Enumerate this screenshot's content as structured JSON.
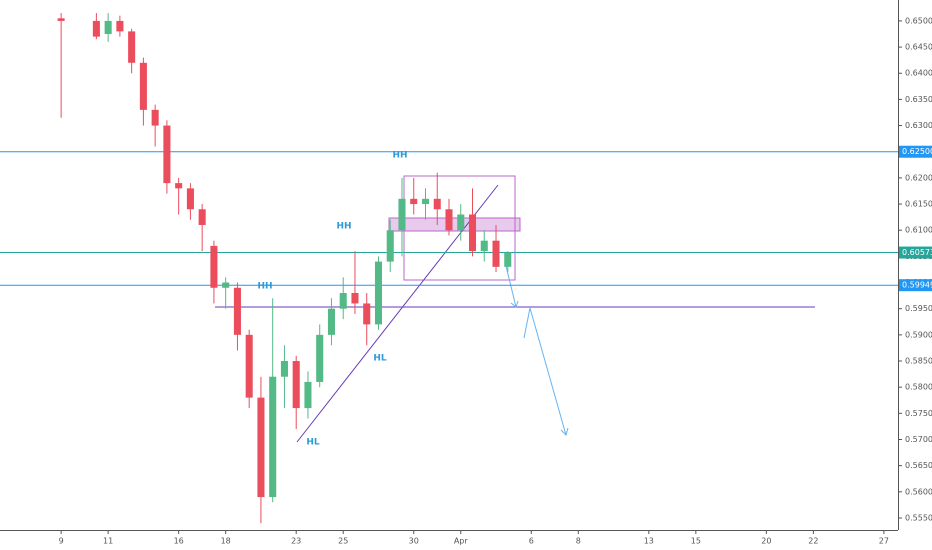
{
  "chart_data": {
    "type": "candlestick",
    "x": [
      0,
      1.5,
      2,
      2.5,
      3,
      3.5,
      4,
      4.5,
      5,
      5.5,
      6,
      6.5,
      7,
      7.5,
      8,
      8.5,
      9,
      9.5,
      10,
      10.5,
      11,
      11.5,
      12,
      12.5,
      13,
      13.5,
      14,
      14.5,
      15,
      15.5,
      16,
      16.5,
      17,
      17.5,
      18,
      18.5,
      19
    ],
    "open": [
      0.6505,
      0.65,
      0.6475,
      0.65,
      0.648,
      0.642,
      0.633,
      0.63,
      0.619,
      0.618,
      0.614,
      0.607,
      0.599,
      0.599,
      0.59,
      0.578,
      0.559,
      0.582,
      0.585,
      0.576,
      0.581,
      0.59,
      0.595,
      0.598,
      0.596,
      0.592,
      0.604,
      0.61,
      0.616,
      0.615,
      0.616,
      0.614,
      0.61,
      0.613,
      0.606,
      0.608,
      0.603
    ],
    "high": [
      0.6515,
      0.6515,
      0.6515,
      0.651,
      0.6485,
      0.643,
      0.634,
      0.631,
      0.62,
      0.619,
      0.615,
      0.608,
      0.601,
      0.6,
      0.591,
      0.582,
      0.597,
      0.588,
      0.586,
      0.583,
      0.592,
      0.597,
      0.601,
      0.606,
      0.598,
      0.605,
      0.612,
      0.62,
      0.62,
      0.618,
      0.621,
      0.616,
      0.615,
      0.618,
      0.61,
      0.611,
      0.606
    ],
    "low": [
      0.6315,
      0.6465,
      0.646,
      0.647,
      0.64,
      0.63,
      0.626,
      0.617,
      0.613,
      0.612,
      0.606,
      0.596,
      0.595,
      0.587,
      0.576,
      0.554,
      0.558,
      0.576,
      0.572,
      0.574,
      0.58,
      0.588,
      0.593,
      0.594,
      0.588,
      0.591,
      0.602,
      0.605,
      0.613,
      0.612,
      0.611,
      0.609,
      0.608,
      0.605,
      0.604,
      0.602,
      0.602
    ],
    "close": [
      0.65,
      0.647,
      0.65,
      0.648,
      0.642,
      0.633,
      0.63,
      0.619,
      0.618,
      0.614,
      0.611,
      0.599,
      0.6,
      0.59,
      0.578,
      0.559,
      0.582,
      0.585,
      0.576,
      0.581,
      0.59,
      0.595,
      0.598,
      0.596,
      0.592,
      0.604,
      0.61,
      0.616,
      0.615,
      0.616,
      0.614,
      0.61,
      0.613,
      0.606,
      0.608,
      0.603,
      0.6057
    ],
    "up_color": "#53b987",
    "down_color": "#eb4d5c",
    "xlim": [
      -2.6,
      35.6
    ],
    "xticks": [
      {
        "value": 0,
        "label": "9"
      },
      {
        "value": 2,
        "label": "11"
      },
      {
        "value": 5,
        "label": "16"
      },
      {
        "value": 7,
        "label": "18"
      },
      {
        "value": 10,
        "label": "23"
      },
      {
        "value": 12,
        "label": "25"
      },
      {
        "value": 15,
        "label": "30"
      },
      {
        "value": 17,
        "label": "Apr"
      },
      {
        "value": 20,
        "label": "6"
      },
      {
        "value": 22,
        "label": "8"
      },
      {
        "value": 25,
        "label": "13"
      },
      {
        "value": 27,
        "label": "15"
      },
      {
        "value": 30,
        "label": "20"
      },
      {
        "value": 32,
        "label": "22"
      },
      {
        "value": 35,
        "label": "27"
      }
    ],
    "ylim": [
      0.5527,
      0.654
    ],
    "yticks": [
      {
        "value": 0.555,
        "label": "0.55500"
      },
      {
        "value": 0.56,
        "label": "0.56000"
      },
      {
        "value": 0.565,
        "label": "0.56500"
      },
      {
        "value": 0.57,
        "label": "0.57000"
      },
      {
        "value": 0.575,
        "label": "0.57500"
      },
      {
        "value": 0.58,
        "label": "0.58000"
      },
      {
        "value": 0.585,
        "label": "0.58500"
      },
      {
        "value": 0.59,
        "label": "0.59000"
      },
      {
        "value": 0.595,
        "label": "0.59500"
      },
      {
        "value": 0.6,
        "label": "0.60000"
      },
      {
        "value": 0.605,
        "label": "0.60500"
      },
      {
        "value": 0.61,
        "label": "0.61000"
      },
      {
        "value": 0.615,
        "label": "0.61500"
      },
      {
        "value": 0.62,
        "label": "0.62000"
      },
      {
        "value": 0.625,
        "label": "0.62500"
      },
      {
        "value": 0.63,
        "label": "0.63000"
      },
      {
        "value": 0.635,
        "label": "0.63500"
      },
      {
        "value": 0.64,
        "label": "0.64000"
      },
      {
        "value": 0.645,
        "label": "0.64500"
      },
      {
        "value": 0.65,
        "label": "0.65000"
      }
    ],
    "price_lines": [
      {
        "value": 0.625,
        "label": "0.62500",
        "color": "#2196f3"
      },
      {
        "value": 0.60573,
        "label": "0.60573",
        "color": "#26a69a"
      },
      {
        "value": 0.59949,
        "label": "0.59949",
        "color": "#2196f3"
      }
    ],
    "annotations": [
      "HH",
      "HH",
      "HH",
      "HL",
      "HL"
    ]
  }
}
